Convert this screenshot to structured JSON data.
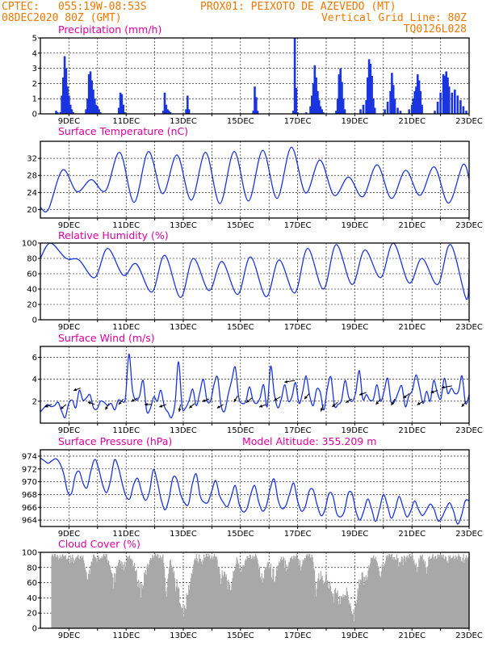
{
  "header": {
    "line1_left": "CPTEC:",
    "coords": "055:19W-08:53S",
    "station": "PROX01: PEIXOTO DE AZEVEDO (MT)",
    "date": "08DEC2020 80Z (GMT)",
    "grid_note": "Vertical Grid Line: 80Z",
    "model": "TQ0126L028"
  },
  "colors": {
    "series": "#1a35e0",
    "title": "#e000a0",
    "header": "#f07800",
    "cloud": "#a8a8a8"
  },
  "chart_data": [
    {
      "type": "bar",
      "title": "Precipitation (mm/h)",
      "x_tick_labels": [
        "9DEC",
        "11DEC",
        "13DEC",
        "15DEC",
        "17DEC",
        "19DEC",
        "21DEC",
        "23DEC"
      ],
      "ylim": [
        0,
        5
      ],
      "y_ticks": [
        0,
        1,
        2,
        3,
        4,
        5
      ],
      "time_range_days": [
        8.0,
        23.0
      ],
      "grid": true,
      "bars": [
        [
          8.55,
          0.2
        ],
        [
          8.6,
          0.1
        ],
        [
          8.7,
          0.1
        ],
        [
          8.75,
          1.2
        ],
        [
          8.8,
          2.4
        ],
        [
          8.85,
          3.8
        ],
        [
          8.9,
          3.0
        ],
        [
          8.95,
          1.8
        ],
        [
          9.0,
          1.2
        ],
        [
          9.05,
          0.6
        ],
        [
          9.1,
          0.3
        ],
        [
          9.15,
          0.1
        ],
        [
          9.6,
          0.3
        ],
        [
          9.65,
          1.0
        ],
        [
          9.7,
          2.6
        ],
        [
          9.75,
          2.8
        ],
        [
          9.8,
          2.2
        ],
        [
          9.85,
          1.6
        ],
        [
          9.9,
          1.0
        ],
        [
          9.95,
          0.6
        ],
        [
          10.0,
          0.5
        ],
        [
          10.05,
          0.3
        ],
        [
          10.1,
          0.1
        ],
        [
          10.75,
          0.4
        ],
        [
          10.8,
          1.4
        ],
        [
          10.85,
          1.3
        ],
        [
          10.9,
          0.6
        ],
        [
          10.95,
          0.1
        ],
        [
          12.3,
          0.2
        ],
        [
          12.35,
          1.4
        ],
        [
          12.4,
          0.6
        ],
        [
          12.45,
          0.3
        ],
        [
          12.5,
          0.2
        ],
        [
          12.55,
          0.1
        ],
        [
          13.1,
          0.3
        ],
        [
          13.15,
          1.2
        ],
        [
          13.2,
          0.3
        ],
        [
          15.45,
          0.2
        ],
        [
          15.5,
          1.8
        ],
        [
          15.55,
          1.1
        ],
        [
          15.6,
          0.2
        ],
        [
          16.85,
          0.2
        ],
        [
          16.9,
          5.0
        ],
        [
          16.95,
          1.7
        ],
        [
          17.0,
          0.1
        ],
        [
          17.3,
          0.1
        ],
        [
          17.45,
          0.5
        ],
        [
          17.5,
          1.2
        ],
        [
          17.55,
          2.0
        ],
        [
          17.6,
          3.2
        ],
        [
          17.65,
          2.4
        ],
        [
          17.7,
          1.5
        ],
        [
          17.75,
          0.9
        ],
        [
          17.8,
          0.5
        ],
        [
          17.85,
          0.3
        ],
        [
          17.9,
          0.1
        ],
        [
          18.35,
          0.2
        ],
        [
          18.4,
          1.0
        ],
        [
          18.45,
          2.6
        ],
        [
          18.5,
          3.0
        ],
        [
          18.55,
          2.1
        ],
        [
          18.6,
          1.0
        ],
        [
          18.65,
          0.3
        ],
        [
          19.2,
          0.3
        ],
        [
          19.3,
          0.6
        ],
        [
          19.4,
          0.9
        ],
        [
          19.45,
          2.4
        ],
        [
          19.5,
          3.6
        ],
        [
          19.55,
          3.3
        ],
        [
          19.6,
          2.5
        ],
        [
          19.65,
          1.0
        ],
        [
          19.7,
          0.4
        ],
        [
          20.05,
          0.3
        ],
        [
          20.15,
          0.8
        ],
        [
          20.25,
          1.5
        ],
        [
          20.3,
          2.7
        ],
        [
          20.35,
          1.9
        ],
        [
          20.4,
          1.0
        ],
        [
          20.5,
          0.4
        ],
        [
          20.6,
          0.2
        ],
        [
          20.9,
          0.3
        ],
        [
          21.0,
          0.6
        ],
        [
          21.05,
          1.0
        ],
        [
          21.1,
          1.5
        ],
        [
          21.15,
          1.8
        ],
        [
          21.2,
          2.6
        ],
        [
          21.25,
          2.2
        ],
        [
          21.3,
          1.5
        ],
        [
          21.35,
          0.6
        ],
        [
          21.8,
          0.2
        ],
        [
          21.9,
          0.8
        ],
        [
          22.0,
          1.4
        ],
        [
          22.1,
          2.6
        ],
        [
          22.15,
          2.5
        ],
        [
          22.2,
          2.8
        ],
        [
          22.25,
          2.4
        ],
        [
          22.3,
          1.8
        ],
        [
          22.4,
          1.4
        ],
        [
          22.5,
          1.6
        ],
        [
          22.6,
          1.2
        ],
        [
          22.7,
          0.9
        ],
        [
          22.8,
          0.5
        ],
        [
          22.9,
          0.2
        ]
      ]
    },
    {
      "type": "line",
      "title": "Surface Temperature (nC)",
      "x_tick_labels": [
        "9DEC",
        "11DEC",
        "13DEC",
        "15DEC",
        "17DEC",
        "19DEC",
        "21DEC",
        "23DEC"
      ],
      "ylim": [
        18,
        36
      ],
      "y_ticks": [
        20,
        24,
        28,
        32
      ],
      "grid": true,
      "peaks": [
        29.3,
        27.0,
        33.4,
        33.6,
        32.8,
        33.4,
        33.6,
        33.9,
        34.6,
        31.6,
        27.6,
        30.5,
        29.2,
        30.0,
        30.5,
        33.7,
        27.5
      ],
      "troughs": [
        20.0,
        24.2,
        24.4,
        21.7,
        23.7,
        22.2,
        21.4,
        22.0,
        22.6,
        23.9,
        23.3,
        23.0,
        22.6,
        23.3,
        21.5,
        21.6,
        22.2,
        26.5
      ]
    },
    {
      "type": "line",
      "title": "Relative Humidity (%)",
      "x_tick_labels": [
        "9DEC",
        "11DEC",
        "13DEC",
        "15DEC",
        "17DEC",
        "19DEC",
        "21DEC",
        "23DEC"
      ],
      "ylim": [
        0,
        100
      ],
      "y_ticks": [
        0,
        20,
        40,
        60,
        80,
        100
      ],
      "grid": true,
      "peaks": [
        100,
        78,
        93,
        73,
        84,
        80,
        76,
        82,
        78,
        93,
        98,
        91,
        100,
        80,
        98
      ],
      "troughs": [
        80,
        55,
        58,
        36,
        29,
        38,
        33,
        30,
        35,
        40,
        46,
        55,
        48,
        46,
        27,
        30,
        57
      ]
    },
    {
      "type": "line",
      "title": "Surface Wind (m/s)",
      "x_tick_labels": [
        "9DEC",
        "11DEC",
        "13DEC",
        "15DEC",
        "17DEC",
        "19DEC",
        "21DEC",
        "23DEC"
      ],
      "ylim": [
        0,
        7
      ],
      "y_ticks": [
        2,
        4,
        6
      ],
      "grid": true,
      "wind_speed": [
        1.0,
        1.4,
        1.7,
        1.5,
        1.6,
        1.9,
        1.1,
        0.5,
        1.8,
        2.1,
        1.4,
        3.0,
        2.1,
        2.3,
        2.6,
        1.4,
        1.3,
        2.0,
        1.9,
        1.6,
        1.8,
        1.2,
        2.1,
        2.0,
        2.3,
        6.3,
        3.0,
        2.1,
        2.5,
        3.9,
        1.1,
        1.3,
        2.4,
        2.0,
        3.0,
        1.5,
        1.0,
        0.5,
        1.8,
        5.6,
        1.5,
        1.4,
        2.1,
        3.1,
        1.6,
        2.8,
        4.0,
        2.1,
        2.0,
        3.5,
        4.2,
        1.6,
        1.1,
        2.6,
        3.9,
        5.1,
        2.3,
        1.8,
        2.0,
        3.3,
        2.1,
        1.8,
        2.3,
        3.5,
        1.5,
        5.2,
        2.7,
        1.4,
        2.2,
        3.5,
        2.0,
        2.4,
        3.7,
        1.8,
        2.8,
        4.3,
        2.5,
        1.6,
        3.1,
        2.8,
        1.2,
        3.2,
        4.2,
        1.6,
        1.7,
        2.1,
        3.9,
        2.4,
        2.0,
        2.8,
        4.8,
        2.2,
        2.6,
        2.1,
        2.2,
        3.5,
        2.0,
        2.9,
        4.1,
        1.9,
        2.0,
        2.8,
        3.4,
        1.5,
        2.5,
        3.0,
        4.4,
        3.2,
        1.8,
        2.9,
        2.0,
        3.9,
        2.8,
        2.2,
        4.1,
        2.7,
        3.2,
        2.7,
        2.9,
        4.3,
        1.8,
        2.6
      ]
    },
    {
      "type": "line",
      "title": "Surface Pressure (hPa)",
      "subtitle": "Model Altitude: 355.209 m",
      "x_tick_labels": [
        "9DEC",
        "11DEC",
        "13DEC",
        "15DEC",
        "17DEC",
        "19DEC",
        "21DEC",
        "23DEC"
      ],
      "ylim": [
        963,
        975
      ],
      "y_ticks": [
        964,
        966,
        968,
        970,
        972,
        974
      ],
      "grid": true,
      "pressure": [
        973.7,
        973.3,
        972.9,
        973.3,
        973.6,
        972.9,
        971.2,
        968.4,
        968.2,
        971.0,
        971.6,
        969.7,
        969.1,
        971.8,
        973.5,
        971.9,
        969.5,
        968.3,
        970.2,
        973.4,
        972.3,
        969.7,
        967.7,
        967.4,
        969.7,
        970.5,
        968.4,
        967.1,
        968.5,
        971.9,
        970.0,
        967.2,
        965.6,
        967.4,
        970.6,
        970.4,
        968.0,
        966.7,
        966.5,
        969.7,
        971.2,
        967.8,
        966.8,
        966.8,
        968.6,
        970.2,
        967.8,
        966.7,
        966.1,
        967.7,
        969.4,
        966.5,
        965.3,
        965.8,
        968.1,
        969.4,
        966.9,
        965.4,
        966.3,
        969.0,
        970.4,
        967.1,
        965.8,
        966.3,
        968.2,
        969.8,
        967.0,
        965.4,
        966.2,
        968.6,
        968.7,
        966.4,
        964.7,
        965.6,
        968.1,
        967.9,
        965.1,
        964.5,
        965.4,
        968.2,
        968.1,
        965.3,
        964.0,
        965.5,
        967.3,
        965.7,
        963.8,
        965.7,
        968.0,
        966.4,
        964.3,
        965.6,
        967.7,
        966.2,
        964.5,
        965.4,
        967.0,
        965.7,
        964.7,
        965.5,
        966.5,
        965.7,
        963.9,
        964.4,
        965.7,
        966.7,
        965.4,
        963.4,
        964.6,
        967.0,
        967.0
      ]
    },
    {
      "type": "area",
      "title": "Cloud Cover (%)",
      "x_tick_labels": [
        "9DEC",
        "11DEC",
        "13DEC",
        "15DEC",
        "17DEC",
        "19DEC",
        "21DEC",
        "23DEC"
      ],
      "ylim": [
        0,
        100
      ],
      "y_ticks": [
        0,
        20,
        40,
        60,
        80,
        100
      ],
      "grid": true,
      "baseline": 95,
      "dips": [
        [
          9.05,
          0.25,
          72
        ],
        [
          9.65,
          0.2,
          58
        ],
        [
          10.05,
          0.18,
          78
        ],
        [
          10.55,
          0.25,
          50
        ],
        [
          10.9,
          0.15,
          62
        ],
        [
          11.5,
          0.35,
          38
        ],
        [
          12.4,
          0.12,
          28
        ],
        [
          12.7,
          0.2,
          62
        ],
        [
          13.0,
          0.4,
          5
        ],
        [
          13.55,
          0.3,
          80
        ],
        [
          14.3,
          0.18,
          54
        ],
        [
          14.6,
          0.25,
          34
        ],
        [
          15.0,
          0.3,
          66
        ],
        [
          15.75,
          0.2,
          48
        ],
        [
          16.15,
          0.3,
          55
        ],
        [
          16.6,
          0.2,
          72
        ],
        [
          17.1,
          0.15,
          70
        ],
        [
          17.65,
          0.12,
          28
        ],
        [
          17.85,
          0.35,
          48
        ],
        [
          18.2,
          0.3,
          36
        ],
        [
          18.5,
          0.5,
          20
        ],
        [
          18.95,
          0.35,
          5
        ],
        [
          19.35,
          0.25,
          48
        ],
        [
          19.9,
          0.2,
          60
        ],
        [
          20.6,
          0.3,
          75
        ],
        [
          21.15,
          0.15,
          66
        ],
        [
          21.5,
          0.2,
          70
        ],
        [
          22.3,
          0.15,
          78
        ],
        [
          22.8,
          0.2,
          80
        ]
      ]
    }
  ]
}
